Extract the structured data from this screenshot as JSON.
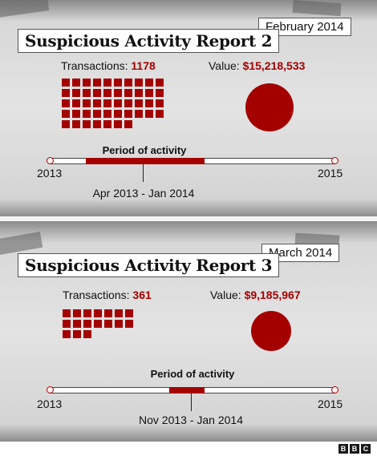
{
  "reports": [
    {
      "title": "Suspicious Activity Report 2",
      "date": "February 2014",
      "transactions_label": "Transactions:",
      "transactions_value": "1178",
      "value_label": "Value:",
      "value_amount": "$15,218,533",
      "period_title": "Period of activity",
      "year_start": "2013",
      "year_end": "2015",
      "period_range": "Apr 2013 - Jan 2014",
      "period_start_fraction": 0.125,
      "period_end_fraction": 0.542
    },
    {
      "title": "Suspicious Activity Report 3",
      "date": "March 2014",
      "transactions_label": "Transactions:",
      "transactions_value": "361",
      "value_label": "Value:",
      "value_amount": "$9,185,967",
      "period_title": "Period of activity",
      "year_start": "2013",
      "year_end": "2015",
      "period_range": "Nov 2013 - Jan 2014",
      "period_start_fraction": 0.417,
      "period_end_fraction": 0.542
    }
  ],
  "footer": {
    "logo_letters": [
      "B",
      "B",
      "C"
    ]
  },
  "colors": {
    "accent": "#a50000",
    "paper": "#e3e3e3"
  }
}
